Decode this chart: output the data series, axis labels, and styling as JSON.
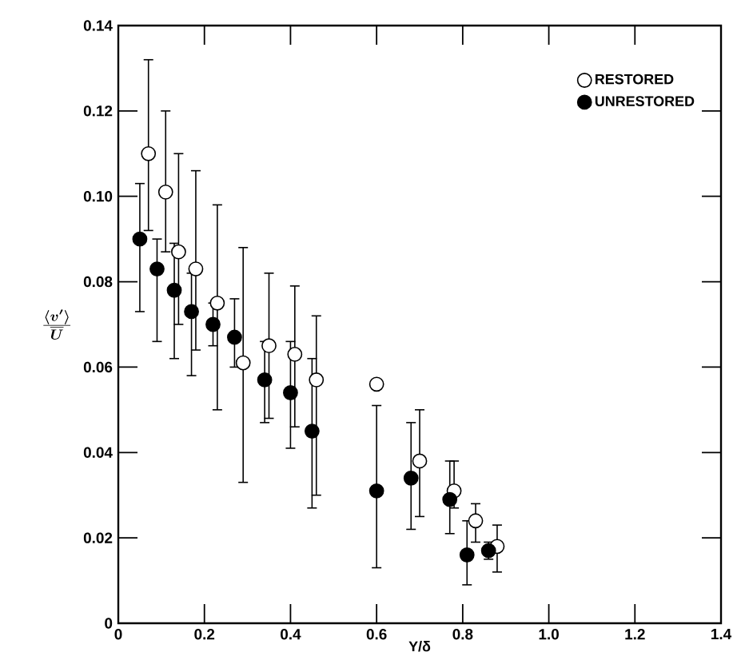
{
  "chart_data": {
    "type": "scatter",
    "xlabel": "Y/δ",
    "ylabel": "\\frac{\\langle v' \\rangle}{\\overline{U}}",
    "xlim": [
      0,
      1.4
    ],
    "ylim": [
      0,
      0.14
    ],
    "xticks": [
      0,
      0.2,
      0.4,
      0.6,
      0.8,
      {
        "value": 1,
        "label": "1.0"
      },
      1.2,
      1.4
    ],
    "yticks": [
      0,
      0.02,
      0.04,
      0.06,
      0.08,
      {
        "value": 0.1,
        "label": "0.10"
      },
      0.12,
      0.14
    ],
    "marker": "circle",
    "legend": "top right",
    "grid": false,
    "series": [
      {
        "name": "RESTORED",
        "color": "#ffffff",
        "x": [
          0.07,
          0.11,
          0.14,
          0.18,
          0.23,
          0.29,
          0.35,
          0.41,
          0.46,
          0.6,
          0.7,
          0.78,
          0.83,
          0.88
        ],
        "values": [
          0.11,
          0.101,
          0.087,
          0.083,
          0.075,
          0.061,
          0.065,
          0.063,
          0.057,
          0.056,
          0.038,
          0.031,
          0.024,
          0.018
        ],
        "errors": [
          [
            0.092,
            0.132
          ],
          [
            0.087,
            0.12
          ],
          [
            0.07,
            0.11
          ],
          [
            0.064,
            0.106
          ],
          [
            0.05,
            0.098
          ],
          [
            0.033,
            0.088
          ],
          [
            0.048,
            0.082
          ],
          [
            0.046,
            0.079
          ],
          [
            0.03,
            0.072
          ],
          null,
          [
            0.025,
            0.05
          ],
          [
            0.027,
            0.038
          ],
          [
            0.019,
            0.028
          ],
          [
            0.012,
            0.023
          ]
        ]
      },
      {
        "name": "UNRESTORED",
        "color": "#000000",
        "x": [
          0.05,
          0.09,
          0.13,
          0.17,
          0.22,
          0.27,
          0.34,
          0.4,
          0.45,
          0.6,
          0.68,
          0.77,
          0.81,
          0.86
        ],
        "values": [
          0.09,
          0.083,
          0.078,
          0.073,
          0.07,
          0.067,
          0.057,
          0.054,
          0.045,
          0.031,
          0.034,
          0.029,
          0.016,
          0.017
        ],
        "errors": [
          [
            0.073,
            0.103
          ],
          [
            0.066,
            0.09
          ],
          [
            0.062,
            0.089
          ],
          [
            0.058,
            0.082
          ],
          [
            0.065,
            0.075
          ],
          [
            0.06,
            0.076
          ],
          [
            0.047,
            0.066
          ],
          [
            0.041,
            0.066
          ],
          [
            0.027,
            0.062
          ],
          [
            0.013,
            0.051
          ],
          [
            0.022,
            0.047
          ],
          [
            0.021,
            0.038
          ],
          [
            0.009,
            0.024
          ],
          [
            0.015,
            0.019
          ]
        ]
      }
    ]
  }
}
